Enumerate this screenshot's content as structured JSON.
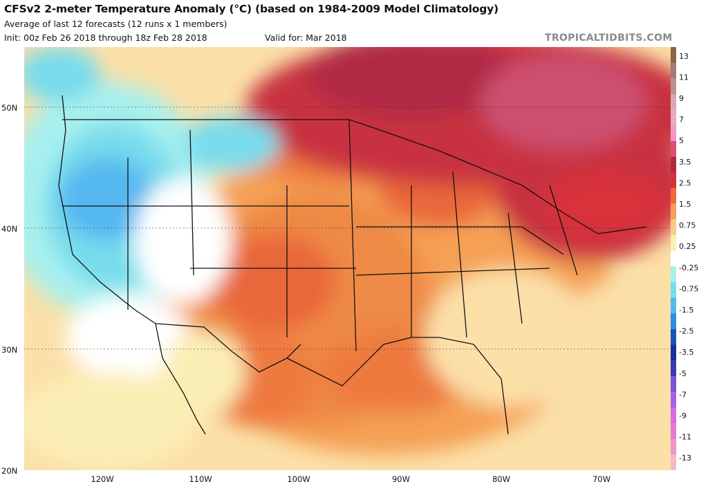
{
  "header": {
    "title": "CFSv2 2-meter Temperature Anomaly (°C) (based on 1984-2009 Model Climatology)",
    "subtitle": "Average of last 12 forecasts (12 runs x 1 members)",
    "init": "Init: 00z Feb 26 2018 through 18z Feb 28 2018",
    "valid": "Valid for: Mar 2018",
    "brand": "TROPICALTIDBITS.COM"
  },
  "axes": {
    "lat_labels": [
      "50N",
      "40N",
      "30N",
      "20N"
    ],
    "lon_labels": [
      "120W",
      "110W",
      "100W",
      "90W",
      "80W",
      "70W"
    ]
  },
  "legend": {
    "labels": [
      "13",
      "11",
      "9",
      "7",
      "5",
      "3.5",
      "2.5",
      "1.5",
      "0.75",
      "0.25",
      "-0.25",
      "-0.75",
      "-1.5",
      "-2.5",
      "-3.5",
      "-5",
      "-7",
      "-9",
      "-11",
      "-13"
    ],
    "colors": [
      "#8a6548",
      "#a37a78",
      "#c09090",
      "#d8a8b0",
      "#e9a9c4",
      "#f298c4",
      "#dd4f78",
      "#b02a44",
      "#d8313a",
      "#ee6a3a",
      "#f5a055",
      "#f8cc85",
      "#fbeeb5",
      "#ffffff",
      "#a8f0ee",
      "#78dcec",
      "#55b8f0",
      "#2f8de0",
      "#1a52b8",
      "#162f92",
      "#3a3ab8",
      "#7756d8",
      "#a562e0",
      "#d66ce0",
      "#e67ad6",
      "#ee96c8",
      "#f4b8c6"
    ]
  }
}
